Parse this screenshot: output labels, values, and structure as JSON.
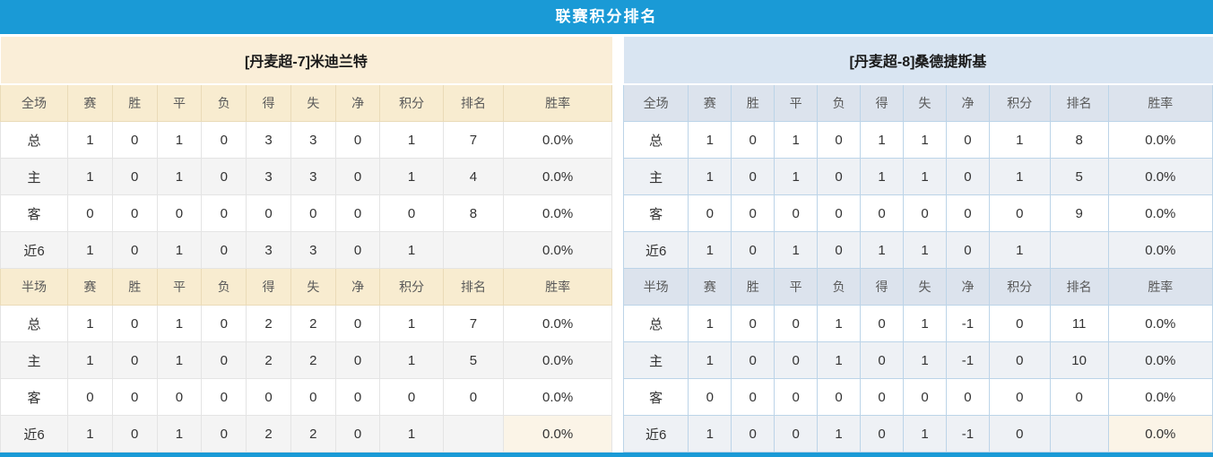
{
  "title": "联赛积分排名",
  "colors": {
    "accent_blue": "#1a9ad6",
    "points_red": "#e3493a",
    "rank_blue": "#3c7fc0",
    "home_red": "#cc2233",
    "away_blue": "#4d4dc9",
    "text_dark": "#333333",
    "header_text": "#595959",
    "cream_team_bg": "#faeed8",
    "cream_header_bg": "#f8ecd0",
    "cream_border": "#eadbb8",
    "blue_team_bg": "#d9e5f2",
    "blue_header_bg": "#dce3ed",
    "blue_border": "#bcd4e8",
    "gray_row_left": "#f4f4f4",
    "gray_row_right": "#eef1f5",
    "left_grid": "#e4e4e4",
    "highlight_cream": "#fbf4e7"
  },
  "columns": [
    "赛",
    "胜",
    "平",
    "负",
    "得",
    "失",
    "净",
    "积分",
    "排名",
    "胜率"
  ],
  "panels": [
    {
      "team_title": "[丹麦超-7]米迪兰特",
      "sections": [
        {
          "header_label": "全场",
          "rows": [
            {
              "label": "总",
              "type": "total",
              "stats": [
                "1",
                "0",
                "1",
                "0",
                "3",
                "3",
                "0"
              ],
              "points": "1",
              "rank": "7",
              "rate": "0.0%"
            },
            {
              "label": "主",
              "type": "home",
              "stats": [
                "1",
                "0",
                "1",
                "0",
                "3",
                "3",
                "0"
              ],
              "points": "1",
              "rank": "4",
              "rate": "0.0%"
            },
            {
              "label": "客",
              "type": "away",
              "stats": [
                "0",
                "0",
                "0",
                "0",
                "0",
                "0",
                "0"
              ],
              "points": "0",
              "rank": "8",
              "rate": "0.0%"
            },
            {
              "label": "近6",
              "type": "recent",
              "stats": [
                "1",
                "0",
                "1",
                "0",
                "3",
                "3",
                "0"
              ],
              "points": "1",
              "rank": "",
              "rate": "0.0%"
            }
          ]
        },
        {
          "header_label": "半场",
          "rows": [
            {
              "label": "总",
              "type": "total",
              "stats": [
                "1",
                "0",
                "1",
                "0",
                "2",
                "2",
                "0"
              ],
              "points": "1",
              "rank": "7",
              "rate": "0.0%"
            },
            {
              "label": "主",
              "type": "home",
              "stats": [
                "1",
                "0",
                "1",
                "0",
                "2",
                "2",
                "0"
              ],
              "points": "1",
              "rank": "5",
              "rate": "0.0%"
            },
            {
              "label": "客",
              "type": "away",
              "stats": [
                "0",
                "0",
                "0",
                "0",
                "0",
                "0",
                "0"
              ],
              "points": "0",
              "rank": "0",
              "rate": "0.0%"
            },
            {
              "label": "近6",
              "type": "recent",
              "stats": [
                "1",
                "0",
                "1",
                "0",
                "2",
                "2",
                "0"
              ],
              "points": "1",
              "rank": "",
              "rate": "0.0%",
              "rate_highlight": true
            }
          ]
        }
      ]
    },
    {
      "team_title": "[丹麦超-8]桑德捷斯基",
      "sections": [
        {
          "header_label": "全场",
          "rows": [
            {
              "label": "总",
              "type": "total",
              "stats": [
                "1",
                "0",
                "1",
                "0",
                "1",
                "1",
                "0"
              ],
              "points": "1",
              "rank": "8",
              "rate": "0.0%"
            },
            {
              "label": "主",
              "type": "home",
              "stats": [
                "1",
                "0",
                "1",
                "0",
                "1",
                "1",
                "0"
              ],
              "points": "1",
              "rank": "5",
              "rate": "0.0%"
            },
            {
              "label": "客",
              "type": "away",
              "stats": [
                "0",
                "0",
                "0",
                "0",
                "0",
                "0",
                "0"
              ],
              "points": "0",
              "rank": "9",
              "rate": "0.0%"
            },
            {
              "label": "近6",
              "type": "recent",
              "stats": [
                "1",
                "0",
                "1",
                "0",
                "1",
                "1",
                "0"
              ],
              "points": "1",
              "rank": "",
              "rate": "0.0%"
            }
          ]
        },
        {
          "header_label": "半场",
          "rows": [
            {
              "label": "总",
              "type": "total",
              "stats": [
                "1",
                "0",
                "0",
                "1",
                "0",
                "1",
                "-1"
              ],
              "points": "0",
              "rank": "11",
              "rate": "0.0%"
            },
            {
              "label": "主",
              "type": "home",
              "stats": [
                "1",
                "0",
                "0",
                "1",
                "0",
                "1",
                "-1"
              ],
              "points": "0",
              "rank": "10",
              "rate": "0.0%"
            },
            {
              "label": "客",
              "type": "away",
              "stats": [
                "0",
                "0",
                "0",
                "0",
                "0",
                "0",
                "0"
              ],
              "points": "0",
              "rank": "0",
              "rate": "0.0%"
            },
            {
              "label": "近6",
              "type": "recent",
              "stats": [
                "1",
                "0",
                "0",
                "1",
                "0",
                "1",
                "-1"
              ],
              "points": "0",
              "rank": "",
              "rate": "0.0%",
              "rate_highlight": true
            }
          ]
        }
      ]
    }
  ]
}
